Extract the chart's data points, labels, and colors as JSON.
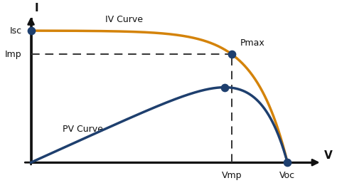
{
  "background_color": "#ffffff",
  "iv_curve_color": "#d4830a",
  "pv_curve_color": "#1e3f6e",
  "point_color": "#1e3f6e",
  "dashed_line_color": "#333333",
  "axis_color": "#111111",
  "isc": 1.0,
  "imp": 0.82,
  "vmp": 0.76,
  "voc": 0.97,
  "pmax_label": "Pmax",
  "isc_label": "Isc",
  "imp_label": "Imp",
  "vmp_label": "Vmp",
  "voc_label": "Voc",
  "iv_label": "IV Curve",
  "pv_label": "PV Curve",
  "i_axis_label": "I",
  "v_axis_label": "V",
  "label_fontsize": 9,
  "tick_fontsize": 9,
  "xlim_max": 1.1,
  "ylim_max": 1.12
}
